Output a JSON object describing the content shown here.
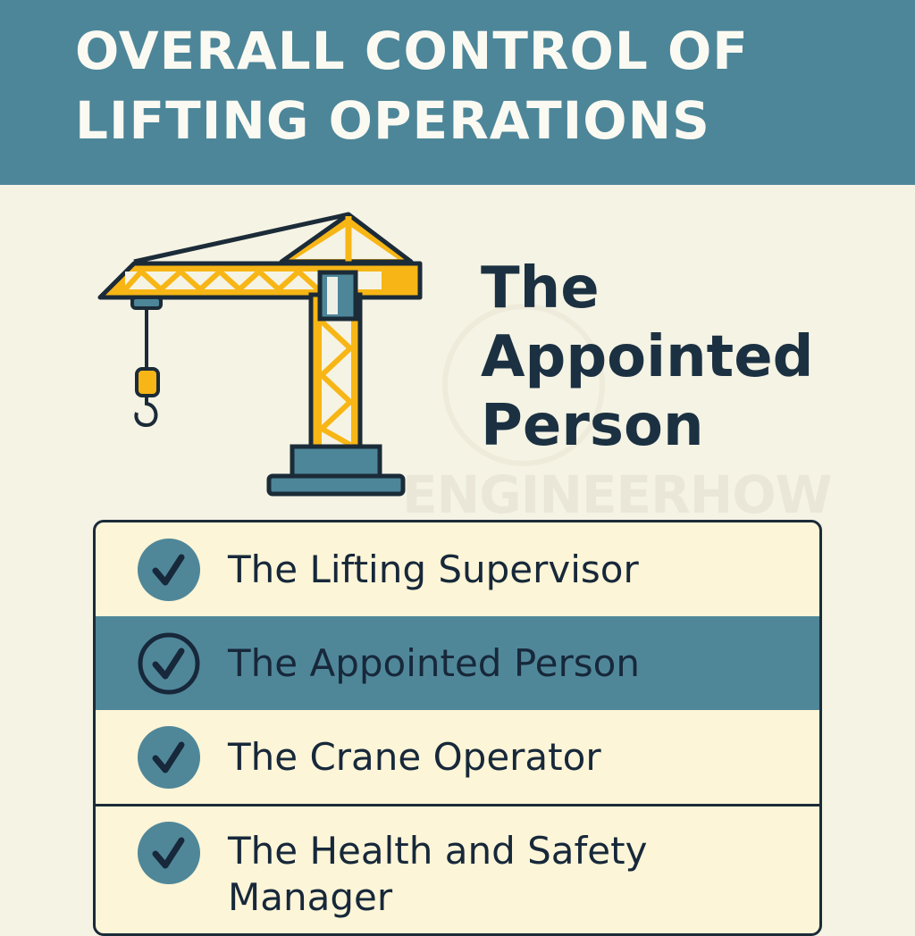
{
  "header": {
    "title_line1": "OVERALL CONTROL OF",
    "title_line2": "LIFTING OPERATIONS"
  },
  "heading": {
    "line1": "The",
    "line2": "Appointed",
    "line3": "Person"
  },
  "illustration": {
    "icon": "tower-crane-icon"
  },
  "watermark": "ENGINEERHOW",
  "options": [
    {
      "label": "The Lifting Supervisor",
      "icon": "check-circle-icon",
      "selected": false
    },
    {
      "label": "The Appointed Person",
      "icon": "check-circle-outline-icon",
      "selected": true
    },
    {
      "label": "The Crane Operator",
      "icon": "check-circle-icon",
      "selected": false
    },
    {
      "label_line1": "The Health and Safety",
      "label_line2": "Manager",
      "icon": "check-circle-icon",
      "selected": false
    }
  ],
  "colors": {
    "header": "#4d8699",
    "background": "#f5f3e4",
    "accent_yellow": "#f7b615",
    "dark": "#1b3142",
    "highlight": "#4f8799"
  }
}
